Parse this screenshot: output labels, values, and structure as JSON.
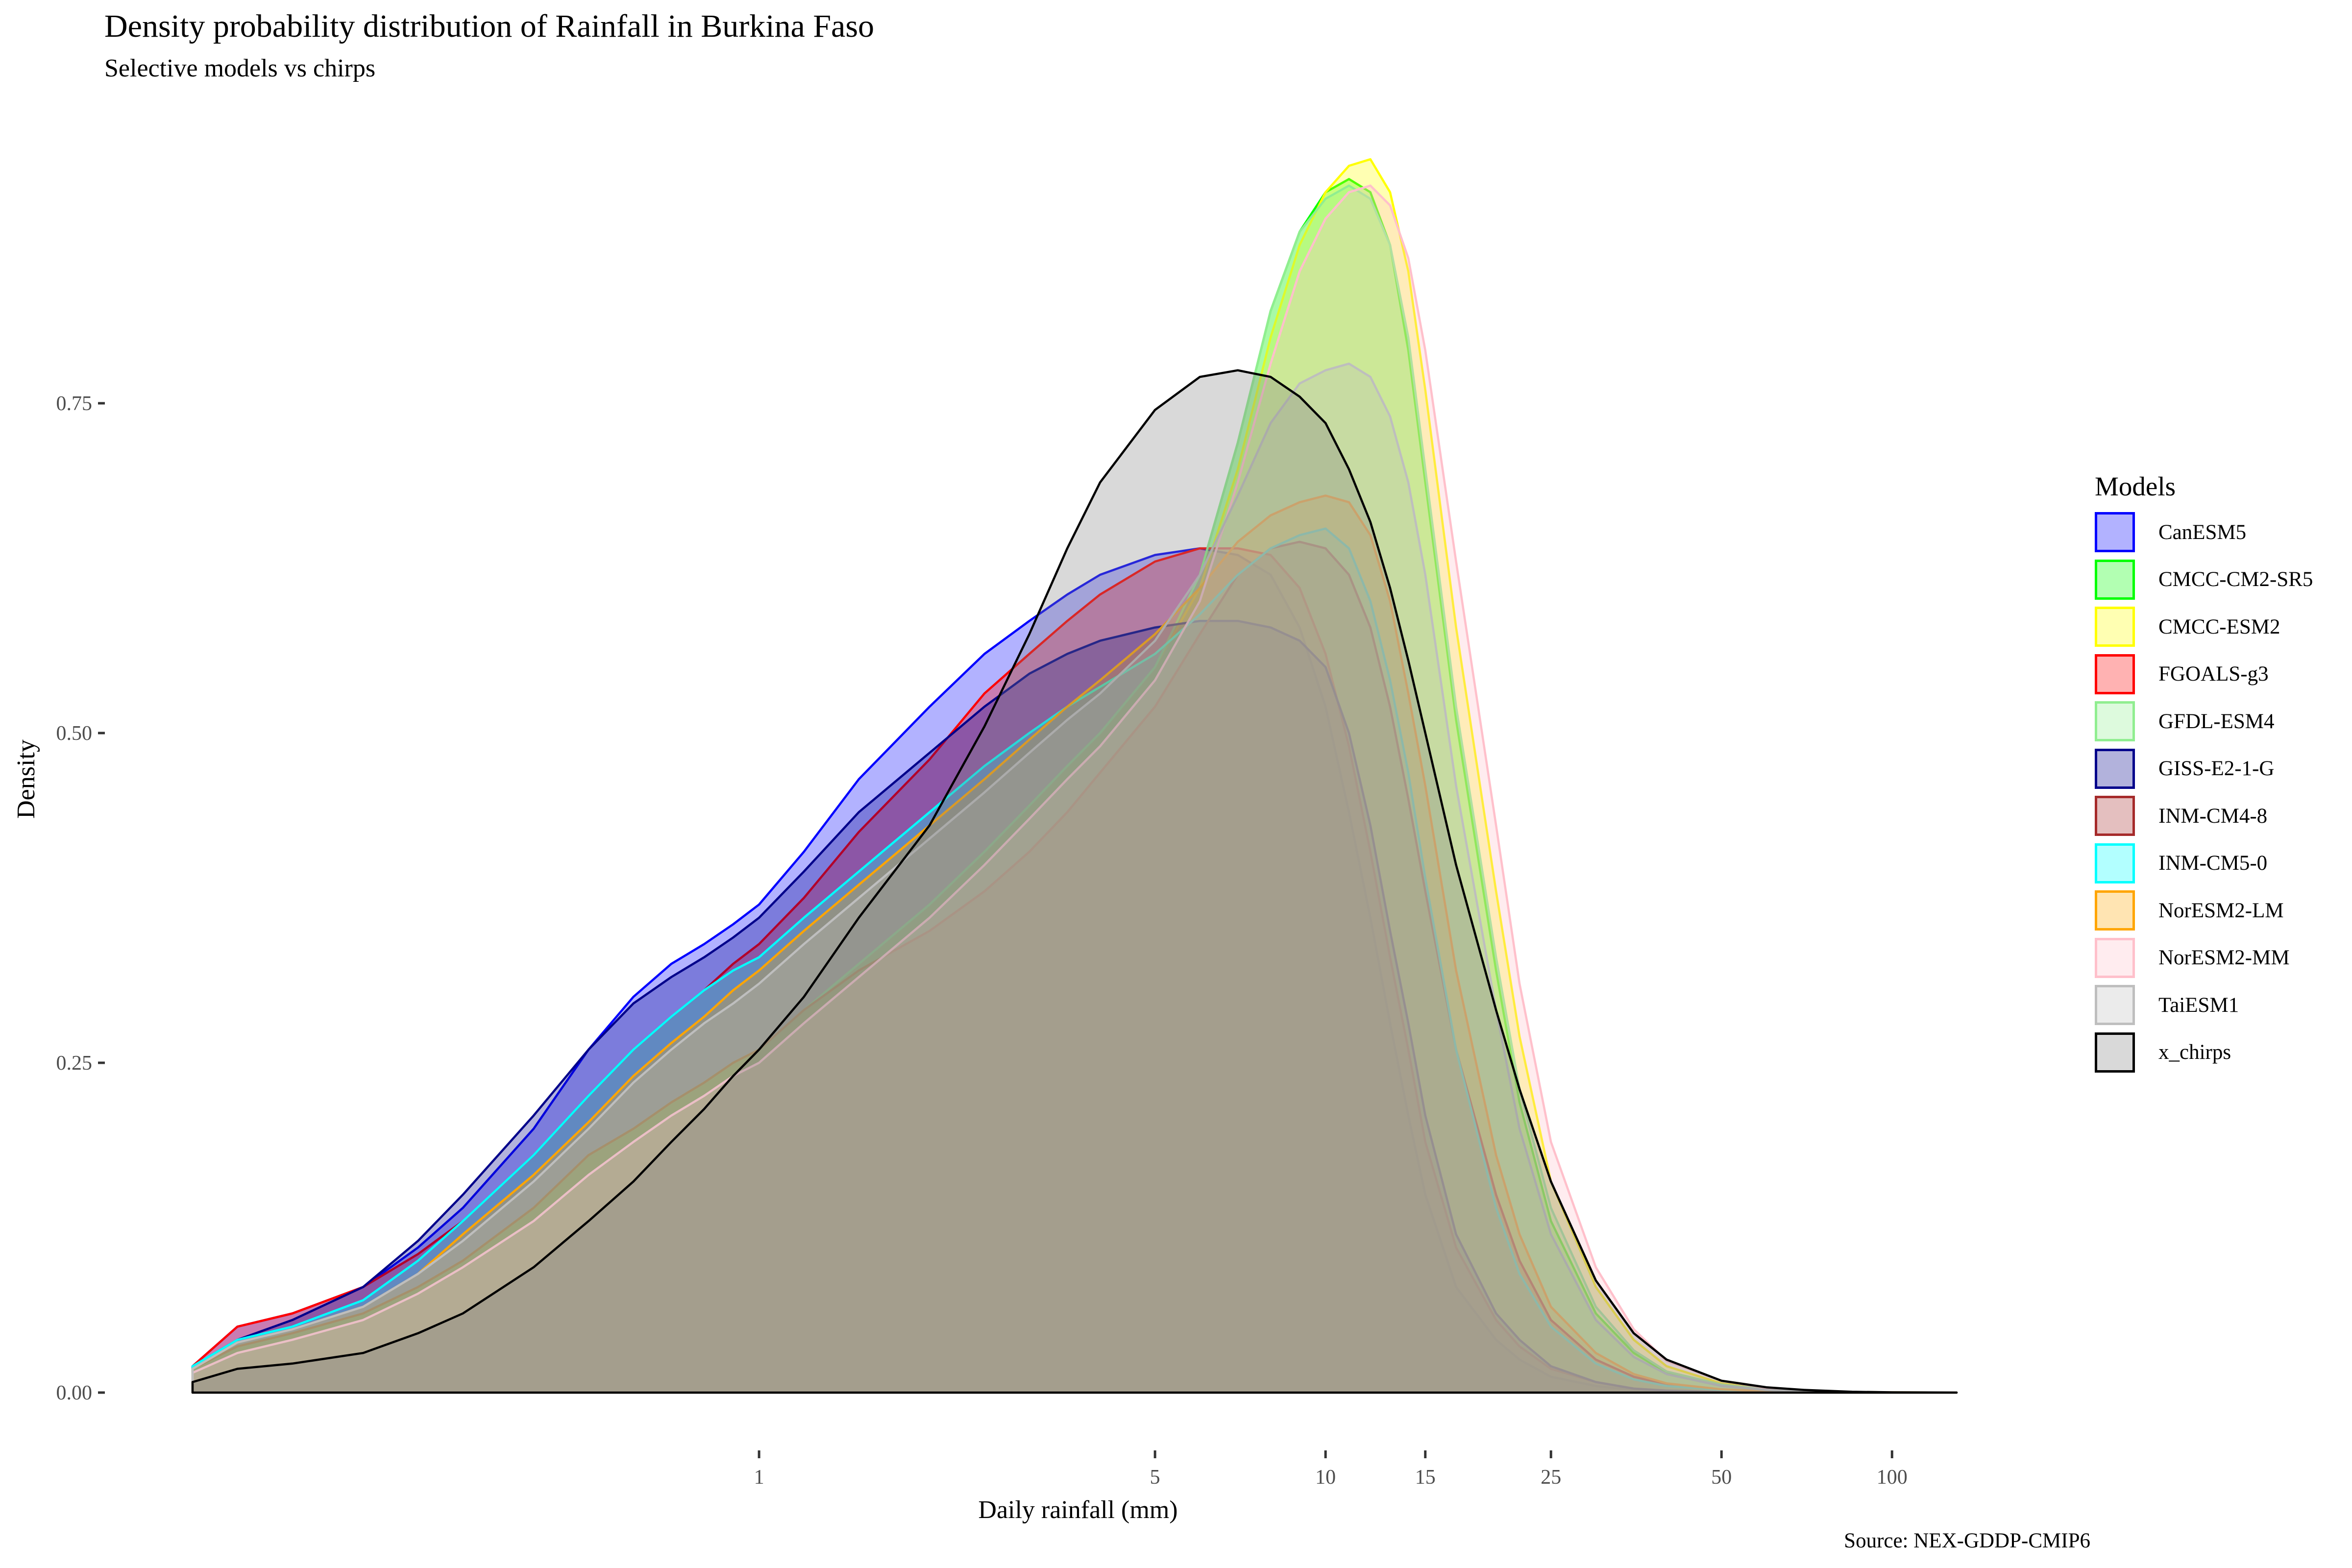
{
  "title": "Density probability distribution of Rainfall in Burkina Faso",
  "subtitle": "Selective models vs chirps",
  "caption": "Source: NEX-GDDP-CMIP6",
  "chart_data": {
    "type": "area",
    "title": "Density probability distribution of Rainfall in Burkina Faso",
    "subtitle": "Selective models vs chirps",
    "xlabel": "Daily rainfall (mm)",
    "ylabel": "Density",
    "x_scale": "log10",
    "xlim": [
      0.1,
      130
    ],
    "ylim": [
      0,
      0.95
    ],
    "x_ticks": [
      1,
      5,
      10,
      15,
      25,
      50,
      100
    ],
    "x_tick_labels": [
      "1",
      "5",
      "10",
      "15",
      "25",
      "50",
      "100"
    ],
    "y_ticks": [
      0,
      0.25,
      0.5,
      0.75
    ],
    "y_tick_labels": [
      "0.00",
      "0.25",
      "0.50",
      "0.75"
    ],
    "grid": false,
    "legend": {
      "title": "Models",
      "position": "right"
    },
    "x": [
      0.1,
      0.12,
      0.15,
      0.2,
      0.25,
      0.3,
      0.4,
      0.5,
      0.6,
      0.7,
      0.8,
      0.9,
      1,
      1.2,
      1.5,
      2,
      2.5,
      3,
      3.5,
      4,
      5,
      6,
      7,
      8,
      9,
      10,
      11,
      12,
      13,
      14,
      15,
      17,
      20,
      22,
      25,
      30,
      35,
      40,
      50,
      60,
      70,
      85,
      100,
      130
    ],
    "series": [
      {
        "name": "CanESM5",
        "color": "#0000FF",
        "fill": "#0000FF",
        "values": [
          0.02,
          0.05,
          0.06,
          0.08,
          0.11,
          0.14,
          0.2,
          0.26,
          0.3,
          0.325,
          0.34,
          0.355,
          0.37,
          0.41,
          0.465,
          0.52,
          0.56,
          0.585,
          0.605,
          0.62,
          0.635,
          0.64,
          0.635,
          0.62,
          0.58,
          0.52,
          0.44,
          0.36,
          0.28,
          0.21,
          0.15,
          0.08,
          0.04,
          0.025,
          0.012,
          0.005,
          0.002,
          0.001,
          0.0004,
          0.0002,
          0.0001,
          0,
          0,
          0
        ]
      },
      {
        "name": "CMCC-CM2-SR5",
        "color": "#00FF00",
        "fill": "#00FF00",
        "values": [
          0.018,
          0.035,
          0.045,
          0.06,
          0.08,
          0.1,
          0.14,
          0.18,
          0.2,
          0.22,
          0.235,
          0.25,
          0.26,
          0.29,
          0.325,
          0.37,
          0.41,
          0.445,
          0.475,
          0.5,
          0.55,
          0.62,
          0.72,
          0.82,
          0.88,
          0.91,
          0.92,
          0.91,
          0.87,
          0.79,
          0.69,
          0.51,
          0.32,
          0.22,
          0.13,
          0.06,
          0.03,
          0.015,
          0.005,
          0.002,
          0.001,
          0.0003,
          0.0001,
          0
        ]
      },
      {
        "name": "CMCC-ESM2",
        "color": "#FFFF00",
        "fill": "#FFFF00",
        "values": [
          0.018,
          0.035,
          0.045,
          0.06,
          0.08,
          0.1,
          0.14,
          0.18,
          0.2,
          0.22,
          0.235,
          0.25,
          0.26,
          0.29,
          0.325,
          0.37,
          0.41,
          0.445,
          0.475,
          0.5,
          0.55,
          0.61,
          0.7,
          0.8,
          0.87,
          0.91,
          0.93,
          0.935,
          0.91,
          0.85,
          0.76,
          0.58,
          0.38,
          0.27,
          0.16,
          0.08,
          0.04,
          0.02,
          0.007,
          0.003,
          0.0015,
          0.0005,
          0.0002,
          0
        ]
      },
      {
        "name": "FGOALS-g3",
        "color": "#FF0000",
        "fill": "#FF0000",
        "values": [
          0.02,
          0.05,
          0.06,
          0.08,
          0.105,
          0.13,
          0.18,
          0.225,
          0.26,
          0.285,
          0.305,
          0.325,
          0.34,
          0.375,
          0.425,
          0.48,
          0.53,
          0.56,
          0.585,
          0.605,
          0.63,
          0.64,
          0.64,
          0.635,
          0.61,
          0.56,
          0.49,
          0.41,
          0.33,
          0.26,
          0.19,
          0.11,
          0.055,
          0.035,
          0.018,
          0.008,
          0.003,
          0.0015,
          0.0005,
          0.0002,
          0.0001,
          0,
          0,
          0
        ]
      },
      {
        "name": "GFDL-ESM4",
        "color": "#90EE90",
        "fill": "#90EE90",
        "values": [
          0.018,
          0.035,
          0.045,
          0.06,
          0.08,
          0.1,
          0.14,
          0.18,
          0.2,
          0.22,
          0.235,
          0.25,
          0.26,
          0.29,
          0.325,
          0.37,
          0.41,
          0.445,
          0.475,
          0.5,
          0.55,
          0.62,
          0.72,
          0.82,
          0.88,
          0.905,
          0.915,
          0.905,
          0.87,
          0.8,
          0.7,
          0.52,
          0.33,
          0.23,
          0.14,
          0.065,
          0.032,
          0.016,
          0.006,
          0.0025,
          0.001,
          0.0003,
          0.0001,
          0
        ]
      },
      {
        "name": "GISS-E2-1-G",
        "color": "#00008B",
        "fill": "#00008B",
        "values": [
          0.02,
          0.04,
          0.055,
          0.08,
          0.115,
          0.15,
          0.21,
          0.26,
          0.295,
          0.315,
          0.33,
          0.345,
          0.36,
          0.395,
          0.44,
          0.485,
          0.52,
          0.545,
          0.56,
          0.57,
          0.58,
          0.585,
          0.585,
          0.58,
          0.57,
          0.55,
          0.5,
          0.43,
          0.35,
          0.28,
          0.21,
          0.12,
          0.06,
          0.04,
          0.02,
          0.008,
          0.003,
          0.0015,
          0.0005,
          0.0002,
          0.0001,
          0,
          0,
          0
        ]
      },
      {
        "name": "INM-CM4-8",
        "color": "#A52A2A",
        "fill": "#A52A2A",
        "values": [
          0.018,
          0.035,
          0.045,
          0.06,
          0.08,
          0.1,
          0.14,
          0.18,
          0.2,
          0.22,
          0.235,
          0.25,
          0.26,
          0.29,
          0.32,
          0.35,
          0.38,
          0.41,
          0.44,
          0.47,
          0.52,
          0.575,
          0.62,
          0.64,
          0.645,
          0.64,
          0.62,
          0.58,
          0.52,
          0.45,
          0.38,
          0.26,
          0.15,
          0.1,
          0.055,
          0.025,
          0.012,
          0.006,
          0.002,
          0.001,
          0.0004,
          0,
          0,
          0
        ]
      },
      {
        "name": "INM-CM5-0",
        "color": "#00FFFF",
        "fill": "#00FFFF",
        "values": [
          0.02,
          0.04,
          0.05,
          0.07,
          0.1,
          0.13,
          0.18,
          0.225,
          0.26,
          0.285,
          0.305,
          0.32,
          0.33,
          0.36,
          0.395,
          0.44,
          0.475,
          0.5,
          0.52,
          0.535,
          0.56,
          0.59,
          0.62,
          0.64,
          0.65,
          0.655,
          0.64,
          0.6,
          0.54,
          0.47,
          0.39,
          0.26,
          0.14,
          0.09,
          0.05,
          0.022,
          0.01,
          0.005,
          0.002,
          0.0008,
          0.0003,
          0,
          0,
          0
        ]
      },
      {
        "name": "NorESM2-LM",
        "color": "#FFA500",
        "fill": "#FFA500",
        "values": [
          0.018,
          0.038,
          0.048,
          0.065,
          0.09,
          0.12,
          0.165,
          0.205,
          0.24,
          0.265,
          0.285,
          0.305,
          0.32,
          0.35,
          0.385,
          0.43,
          0.465,
          0.495,
          0.52,
          0.54,
          0.575,
          0.61,
          0.645,
          0.665,
          0.675,
          0.68,
          0.675,
          0.65,
          0.6,
          0.53,
          0.46,
          0.32,
          0.18,
          0.12,
          0.065,
          0.03,
          0.014,
          0.007,
          0.0025,
          0.001,
          0.0004,
          0,
          0,
          0
        ]
      },
      {
        "name": "NorESM2-MM",
        "color": "#FFC0CB",
        "fill": "#FFC0CB",
        "values": [
          0.015,
          0.03,
          0.04,
          0.055,
          0.075,
          0.095,
          0.13,
          0.165,
          0.19,
          0.21,
          0.225,
          0.24,
          0.25,
          0.28,
          0.315,
          0.36,
          0.4,
          0.435,
          0.465,
          0.49,
          0.54,
          0.6,
          0.69,
          0.78,
          0.85,
          0.89,
          0.91,
          0.915,
          0.9,
          0.86,
          0.79,
          0.63,
          0.43,
          0.31,
          0.19,
          0.095,
          0.048,
          0.024,
          0.009,
          0.0035,
          0.0015,
          0.0005,
          0.0002,
          0
        ]
      },
      {
        "name": "TaiESM1",
        "color": "#BEBEBE",
        "fill": "#BEBEBE",
        "values": [
          0.018,
          0.038,
          0.048,
          0.065,
          0.09,
          0.115,
          0.16,
          0.2,
          0.235,
          0.26,
          0.28,
          0.295,
          0.31,
          0.34,
          0.375,
          0.42,
          0.455,
          0.485,
          0.51,
          0.53,
          0.57,
          0.62,
          0.68,
          0.735,
          0.765,
          0.775,
          0.78,
          0.77,
          0.74,
          0.69,
          0.62,
          0.46,
          0.29,
          0.2,
          0.12,
          0.055,
          0.027,
          0.014,
          0.005,
          0.002,
          0.0008,
          0.0002,
          0.0001,
          0
        ]
      },
      {
        "name": "x_chirps",
        "color": "#000000",
        "fill": "#808080",
        "values": [
          0.008,
          0.018,
          0.022,
          0.03,
          0.045,
          0.06,
          0.095,
          0.13,
          0.16,
          0.19,
          0.215,
          0.24,
          0.26,
          0.3,
          0.36,
          0.43,
          0.505,
          0.575,
          0.64,
          0.69,
          0.745,
          0.77,
          0.775,
          0.77,
          0.755,
          0.735,
          0.7,
          0.66,
          0.61,
          0.555,
          0.5,
          0.4,
          0.29,
          0.23,
          0.16,
          0.085,
          0.045,
          0.025,
          0.009,
          0.004,
          0.002,
          0.0006,
          0.0002,
          0
        ]
      }
    ]
  }
}
